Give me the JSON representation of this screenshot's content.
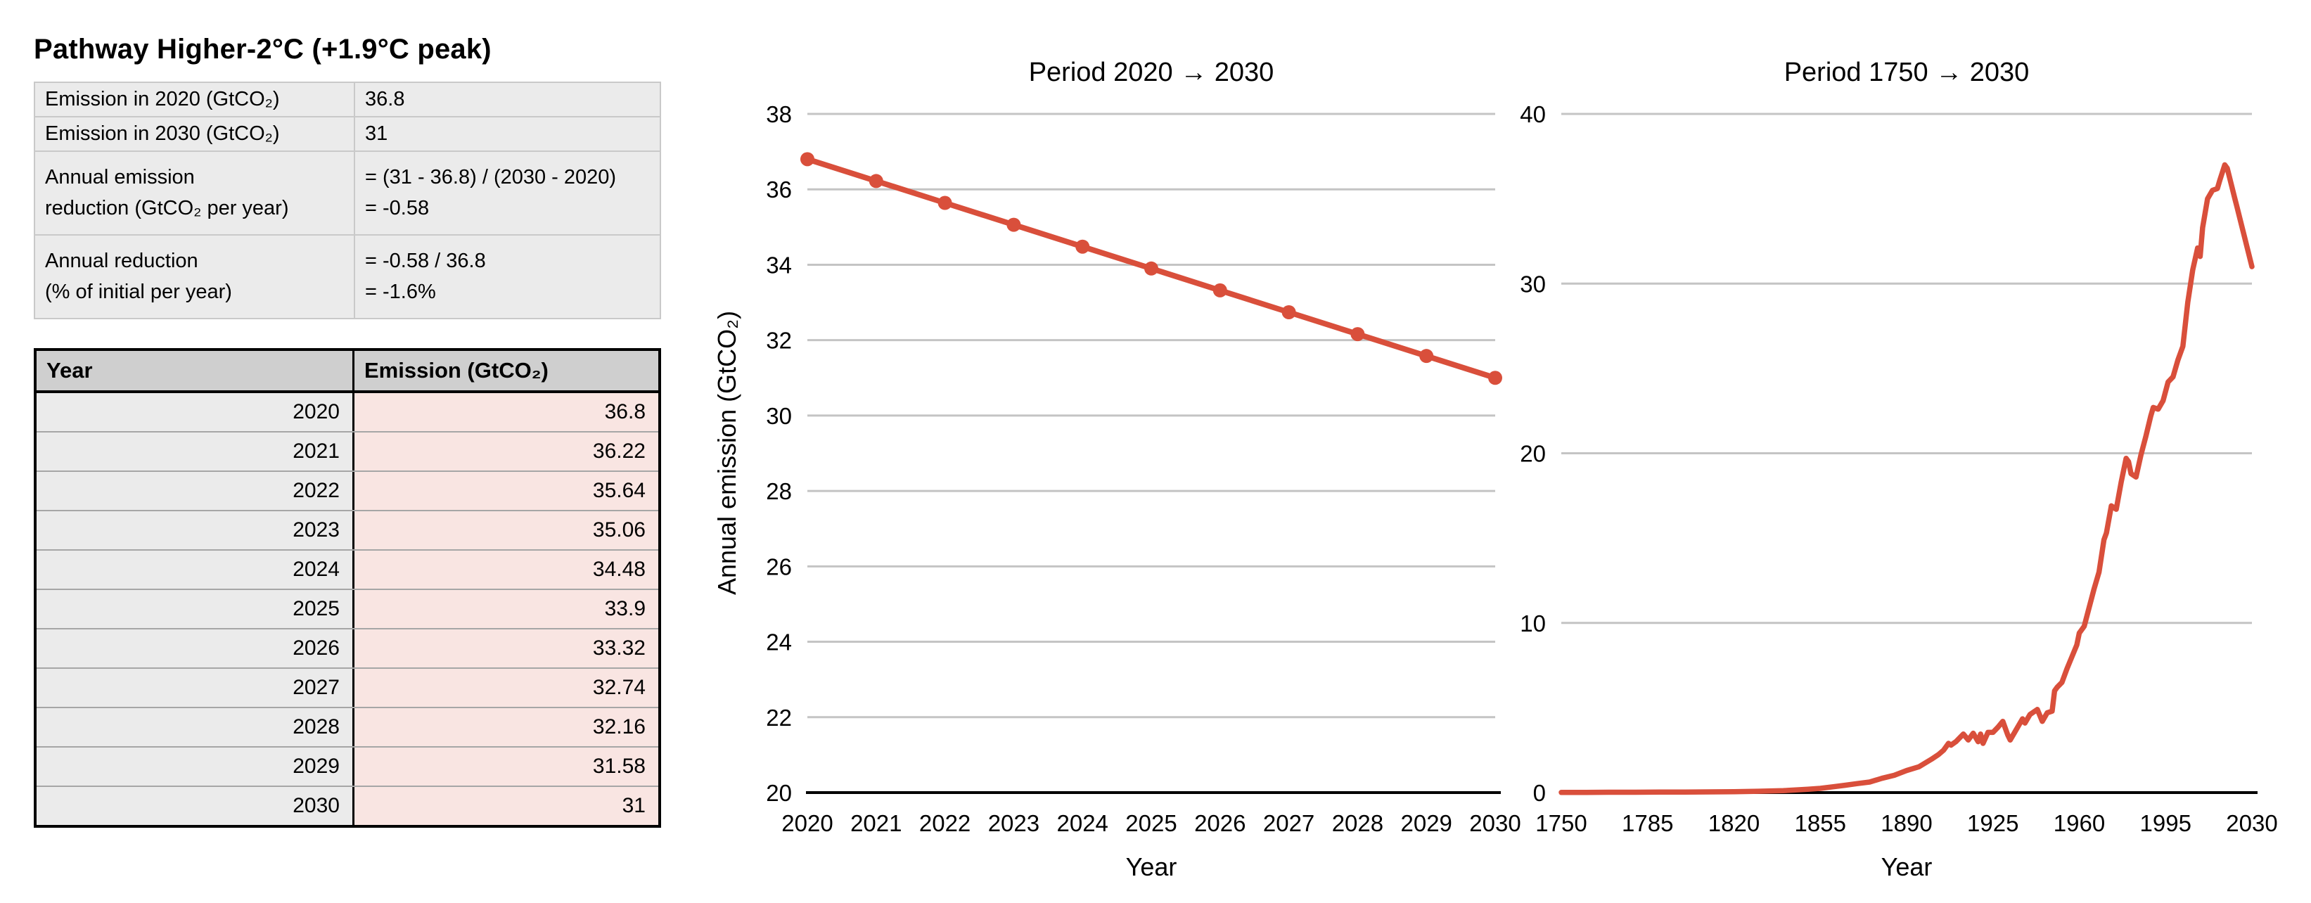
{
  "panel": {
    "title": "Pathway Higher-2°C (+1.9°C peak)",
    "info_rows": [
      {
        "label": "Emission in 2020 (GtCO₂)",
        "value": "36.8"
      },
      {
        "label": "Emission in 2030 (GtCO₂)",
        "value": "31"
      },
      {
        "label": "Annual emission\nreduction (GtCO₂ per year)",
        "value": "= (31 - 36.8) / (2030 - 2020)\n= -0.58"
      },
      {
        "label": "Annual reduction\n(% of initial per year)",
        "value": "= -0.58 / 36.8\n= -1.6%"
      }
    ],
    "table": {
      "headers": [
        "Year",
        "Emission (GtCO₂)"
      ],
      "rows": [
        [
          "2020",
          "36.8"
        ],
        [
          "2021",
          "36.22"
        ],
        [
          "2022",
          "35.64"
        ],
        [
          "2023",
          "35.06"
        ],
        [
          "2024",
          "34.48"
        ],
        [
          "2025",
          "33.9"
        ],
        [
          "2026",
          "33.32"
        ],
        [
          "2027",
          "32.74"
        ],
        [
          "2028",
          "32.16"
        ],
        [
          "2029",
          "31.58"
        ],
        [
          "2030",
          "31"
        ]
      ]
    }
  },
  "chart_data": [
    {
      "type": "line",
      "title": "Period 2020 → 2030",
      "xlabel": "Year",
      "ylabel": "Annual emission (GtCO₂)",
      "xlim": [
        2020,
        2030
      ],
      "ylim": [
        20,
        38
      ],
      "xticks": [
        2020,
        2021,
        2022,
        2023,
        2024,
        2025,
        2026,
        2027,
        2028,
        2029,
        2030
      ],
      "yticks": [
        20,
        22,
        24,
        26,
        28,
        30,
        32,
        34,
        36,
        38
      ],
      "grid": true,
      "legend": "none",
      "markers": true,
      "points": [
        [
          2020,
          36.8
        ],
        [
          2021,
          36.22
        ],
        [
          2022,
          35.64
        ],
        [
          2023,
          35.06
        ],
        [
          2024,
          34.48
        ],
        [
          2025,
          33.9
        ],
        [
          2026,
          33.32
        ],
        [
          2027,
          32.74
        ],
        [
          2028,
          32.16
        ],
        [
          2029,
          31.58
        ],
        [
          2030,
          31
        ]
      ]
    },
    {
      "type": "line",
      "title": "Period 1750 → 2030",
      "xlabel": "Year",
      "ylabel": "",
      "xlim": [
        1750,
        2030
      ],
      "ylim": [
        0,
        40
      ],
      "xticks": [
        1750,
        1785,
        1820,
        1855,
        1890,
        1925,
        1960,
        1995,
        2030
      ],
      "yticks": [
        0,
        10,
        20,
        30,
        40
      ],
      "grid": true,
      "legend": "none",
      "markers": false,
      "points": [
        [
          1750,
          0.01
        ],
        [
          1760,
          0.01
        ],
        [
          1770,
          0.02
        ],
        [
          1780,
          0.02
        ],
        [
          1790,
          0.03
        ],
        [
          1800,
          0.03
        ],
        [
          1810,
          0.04
        ],
        [
          1820,
          0.05
        ],
        [
          1830,
          0.08
        ],
        [
          1840,
          0.11
        ],
        [
          1850,
          0.2
        ],
        [
          1855,
          0.25
        ],
        [
          1860,
          0.34
        ],
        [
          1865,
          0.43
        ],
        [
          1870,
          0.53
        ],
        [
          1875,
          0.62
        ],
        [
          1880,
          0.84
        ],
        [
          1885,
          1.02
        ],
        [
          1890,
          1.3
        ],
        [
          1895,
          1.52
        ],
        [
          1900,
          1.96
        ],
        [
          1903,
          2.25
        ],
        [
          1905,
          2.5
        ],
        [
          1907,
          2.9
        ],
        [
          1908,
          2.8
        ],
        [
          1910,
          3.0
        ],
        [
          1913,
          3.45
        ],
        [
          1915,
          3.1
        ],
        [
          1917,
          3.5
        ],
        [
          1919,
          3.0
        ],
        [
          1920,
          3.45
        ],
        [
          1921,
          2.9
        ],
        [
          1923,
          3.55
        ],
        [
          1925,
          3.55
        ],
        [
          1927,
          3.85
        ],
        [
          1929,
          4.2
        ],
        [
          1931,
          3.4
        ],
        [
          1932,
          3.1
        ],
        [
          1934,
          3.6
        ],
        [
          1936,
          4.1
        ],
        [
          1937,
          4.35
        ],
        [
          1938,
          4.1
        ],
        [
          1940,
          4.6
        ],
        [
          1943,
          4.9
        ],
        [
          1945,
          4.2
        ],
        [
          1947,
          4.7
        ],
        [
          1949,
          4.8
        ],
        [
          1950,
          6.0
        ],
        [
          1951,
          6.2
        ],
        [
          1953,
          6.5
        ],
        [
          1955,
          7.3
        ],
        [
          1957,
          8.0
        ],
        [
          1959,
          8.7
        ],
        [
          1960,
          9.4
        ],
        [
          1962,
          9.8
        ],
        [
          1964,
          10.9
        ],
        [
          1966,
          12.0
        ],
        [
          1968,
          13.0
        ],
        [
          1970,
          14.9
        ],
        [
          1971,
          15.3
        ],
        [
          1973,
          16.9
        ],
        [
          1975,
          16.7
        ],
        [
          1977,
          18.3
        ],
        [
          1979,
          19.7
        ],
        [
          1980,
          19.5
        ],
        [
          1981,
          18.8
        ],
        [
          1983,
          18.6
        ],
        [
          1985,
          19.9
        ],
        [
          1987,
          21.0
        ],
        [
          1989,
          22.2
        ],
        [
          1990,
          22.7
        ],
        [
          1992,
          22.6
        ],
        [
          1994,
          23.1
        ],
        [
          1996,
          24.2
        ],
        [
          1998,
          24.5
        ],
        [
          2000,
          25.5
        ],
        [
          2002,
          26.3
        ],
        [
          2004,
          28.9
        ],
        [
          2006,
          30.8
        ],
        [
          2008,
          32.1
        ],
        [
          2009,
          31.6
        ],
        [
          2010,
          33.3
        ],
        [
          2012,
          35.0
        ],
        [
          2014,
          35.5
        ],
        [
          2016,
          35.6
        ],
        [
          2017,
          36.1
        ],
        [
          2019,
          37.0
        ],
        [
          2020,
          36.8
        ],
        [
          2021,
          36.22
        ],
        [
          2022,
          35.64
        ],
        [
          2023,
          35.06
        ],
        [
          2024,
          34.48
        ],
        [
          2025,
          33.9
        ],
        [
          2026,
          33.32
        ],
        [
          2027,
          32.74
        ],
        [
          2028,
          32.16
        ],
        [
          2029,
          31.58
        ],
        [
          2030,
          31
        ]
      ]
    }
  ],
  "colors": {
    "line": "#d94f3b",
    "gridline": "#c4c4c4",
    "axis": "#000000",
    "table_header_bg": "#cfcfcf",
    "table_year_bg": "#ebebeb",
    "table_emission_bg": "#f9e5e2",
    "info_bg": "#ebebeb"
  }
}
